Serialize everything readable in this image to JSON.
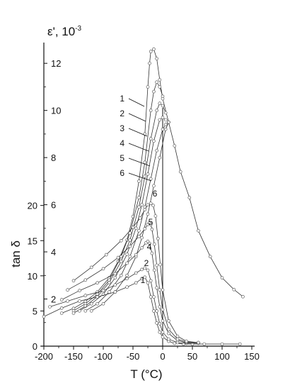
{
  "chart_data": {
    "type": "line",
    "x_axis": {
      "label": "T (°C)",
      "ticks": [
        -200,
        -150,
        -100,
        -50,
        0,
        50,
        100,
        150
      ],
      "range": [
        -200,
        150
      ]
    },
    "y_left": {
      "label": "tan δ",
      "ticks": [
        0,
        5,
        10,
        15,
        20
      ],
      "range": [
        0,
        24
      ]
    },
    "y_right": {
      "label_text": "ε', 10",
      "label_exponent": "-3",
      "ticks": [
        2,
        4,
        6,
        8,
        10,
        12
      ],
      "range": [
        0,
        13
      ]
    },
    "series": [
      {
        "name": "1",
        "group": "permittivity",
        "axis": "y_right",
        "x": [
          -170,
          -150,
          -130,
          -110,
          -90,
          -75,
          -60,
          -50,
          -40,
          -30,
          -25,
          -22,
          -20,
          -15,
          -10,
          -5,
          0,
          10,
          20,
          30,
          45,
          60,
          80,
          100,
          120,
          135
        ],
        "y": [
          1.4,
          1.6,
          1.9,
          2.3,
          2.9,
          3.6,
          4.5,
          5.5,
          7.0,
          9.0,
          11.0,
          12.0,
          12.5,
          12.6,
          12.2,
          11.3,
          10.5,
          9.5,
          8.5,
          7.4,
          6.3,
          4.9,
          3.8,
          2.9,
          2.4,
          2.1
        ]
      },
      {
        "name": "2",
        "group": "permittivity",
        "axis": "y_right",
        "x": [
          -150,
          -130,
          -110,
          -90,
          -70,
          -55,
          -40,
          -30,
          -20,
          -15,
          -10,
          -5,
          0
        ],
        "y": [
          1.5,
          1.8,
          2.2,
          2.8,
          3.8,
          4.8,
          6.3,
          7.8,
          10.0,
          10.8,
          11.2,
          11.0,
          10.6
        ]
      },
      {
        "name": "3",
        "group": "permittivity",
        "axis": "y_right",
        "x": [
          -150,
          -130,
          -110,
          -90,
          -70,
          -55,
          -40,
          -30,
          -20,
          -10,
          -5,
          0,
          5
        ],
        "y": [
          1.4,
          1.7,
          2.1,
          2.7,
          3.6,
          4.5,
          5.9,
          7.2,
          8.8,
          10.0,
          10.3,
          10.2,
          9.9
        ]
      },
      {
        "name": "4",
        "group": "permittivity",
        "axis": "y_right",
        "x": [
          -140,
          -120,
          -100,
          -80,
          -60,
          -45,
          -35,
          -25,
          -15,
          -5,
          0,
          5
        ],
        "y": [
          1.5,
          1.8,
          2.2,
          2.9,
          3.9,
          5.0,
          6.0,
          7.3,
          8.7,
          9.6,
          9.7,
          9.6
        ]
      },
      {
        "name": "5",
        "group": "permittivity",
        "axis": "y_right",
        "x": [
          -130,
          -110,
          -90,
          -70,
          -55,
          -40,
          -30,
          -20,
          -10,
          0,
          5,
          10
        ],
        "y": [
          1.5,
          1.8,
          2.3,
          3.0,
          3.8,
          4.9,
          5.9,
          7.1,
          8.3,
          9.2,
          9.4,
          9.5
        ]
      },
      {
        "name": "6",
        "group": "permittivity",
        "axis": "y_right",
        "x": [
          -120,
          -100,
          -80,
          -60,
          -45,
          -35,
          -25,
          -15,
          -5,
          5,
          10
        ],
        "y": [
          1.5,
          1.8,
          2.3,
          3.0,
          3.8,
          4.6,
          5.6,
          6.8,
          8.0,
          9.2,
          9.5
        ]
      },
      {
        "name": "1",
        "group": "loss",
        "axis": "y_left",
        "x": [
          -200,
          -170,
          -140,
          -110,
          -80,
          -60,
          -45,
          -35,
          -30,
          -25,
          -20,
          -15,
          -10,
          -5,
          0,
          10,
          20,
          35,
          50,
          70,
          100,
          130
        ],
        "y": [
          4.2,
          5.4,
          6.4,
          7.0,
          7.7,
          8.4,
          9.0,
          9.6,
          9.8,
          9.0,
          7.0,
          5.0,
          3.3,
          2.0,
          1.3,
          0.7,
          0.4,
          0.3,
          0.3,
          0.3,
          0.3,
          0.3
        ]
      },
      {
        "name": "2",
        "group": "loss",
        "axis": "y_left",
        "x": [
          -190,
          -160,
          -130,
          -100,
          -80,
          -60,
          -45,
          -35,
          -30,
          -25,
          -20,
          -15,
          -10,
          -5,
          0,
          10,
          25,
          40,
          60
        ],
        "y": [
          5.6,
          6.4,
          7.2,
          7.9,
          8.7,
          9.6,
          10.4,
          10.9,
          11.1,
          10.8,
          9.3,
          7.0,
          5.0,
          3.2,
          2.0,
          1.0,
          0.5,
          0.4,
          0.4
        ]
      },
      {
        "name": "4",
        "group": "loss",
        "axis": "y_left",
        "x": [
          -170,
          -140,
          -110,
          -80,
          -60,
          -45,
          -35,
          -28,
          -25,
          -22,
          -18,
          -14,
          -10,
          -5,
          0,
          10,
          25,
          40,
          60
        ],
        "y": [
          6.6,
          7.9,
          9.0,
          10.3,
          11.8,
          13.0,
          14.0,
          14.7,
          14.9,
          14.6,
          13.2,
          10.8,
          8.3,
          5.6,
          3.6,
          1.8,
          0.8,
          0.5,
          0.5
        ]
      },
      {
        "name": "5",
        "group": "loss",
        "axis": "y_left",
        "x": [
          -160,
          -130,
          -100,
          -75,
          -55,
          -40,
          -30,
          -25,
          -22,
          -20,
          -18,
          -14,
          -10,
          -5,
          0,
          10,
          25,
          40,
          60
        ],
        "y": [
          8.0,
          9.4,
          11.0,
          12.6,
          14.2,
          15.6,
          16.7,
          17.3,
          17.5,
          17.3,
          16.6,
          14.5,
          11.5,
          8.0,
          5.2,
          2.4,
          1.0,
          0.6,
          0.5
        ]
      },
      {
        "name": "6",
        "group": "loss",
        "axis": "y_left",
        "x": [
          -150,
          -120,
          -95,
          -70,
          -50,
          -38,
          -30,
          -25,
          -20,
          -16,
          -12,
          -8,
          -4,
          0,
          10,
          25,
          40,
          60
        ],
        "y": [
          9.3,
          11.2,
          13.0,
          15.0,
          16.9,
          18.2,
          19.4,
          20.1,
          20.3,
          20.0,
          18.5,
          15.3,
          11.6,
          8.0,
          3.6,
          1.4,
          0.7,
          0.5
        ]
      }
    ],
    "annotations": {
      "permittivity_labels": [
        "1",
        "2",
        "3",
        "4",
        "5",
        "6"
      ],
      "loss_labels": [
        "6",
        "5",
        "4",
        "2",
        "1"
      ]
    }
  }
}
